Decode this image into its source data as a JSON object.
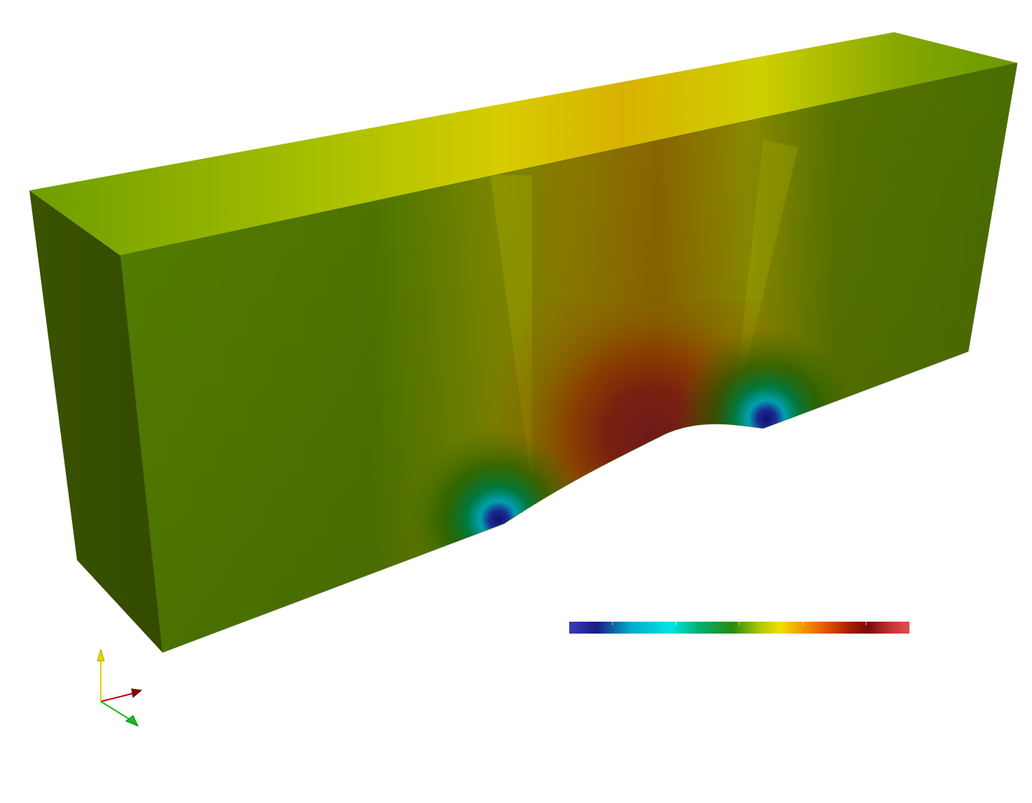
{
  "scene": {
    "background": "#ffffff",
    "colors": {
      "top_face_edge": "#6e9d00",
      "top_face_center": "#d7b100",
      "front_face_edge": "#4a6e00",
      "front_face_center": "#8a6a00",
      "side_face": "#3a5200",
      "hot_spot": "#6e1a1a",
      "cold_spot": "#101070"
    }
  },
  "colorbar": {
    "stops": [
      "#3b3bbf",
      "#1a1a80",
      "#00aacc",
      "#00e5e5",
      "#00b070",
      "#2a8a10",
      "#b0c800",
      "#f0e000",
      "#f08a00",
      "#e05000",
      "#a82000",
      "#7a0a0a",
      "#c03030",
      "#e05050"
    ]
  },
  "axes": {
    "x_color": "#c00000",
    "y_color": "#e0d000",
    "z_color": "#10c010"
  }
}
